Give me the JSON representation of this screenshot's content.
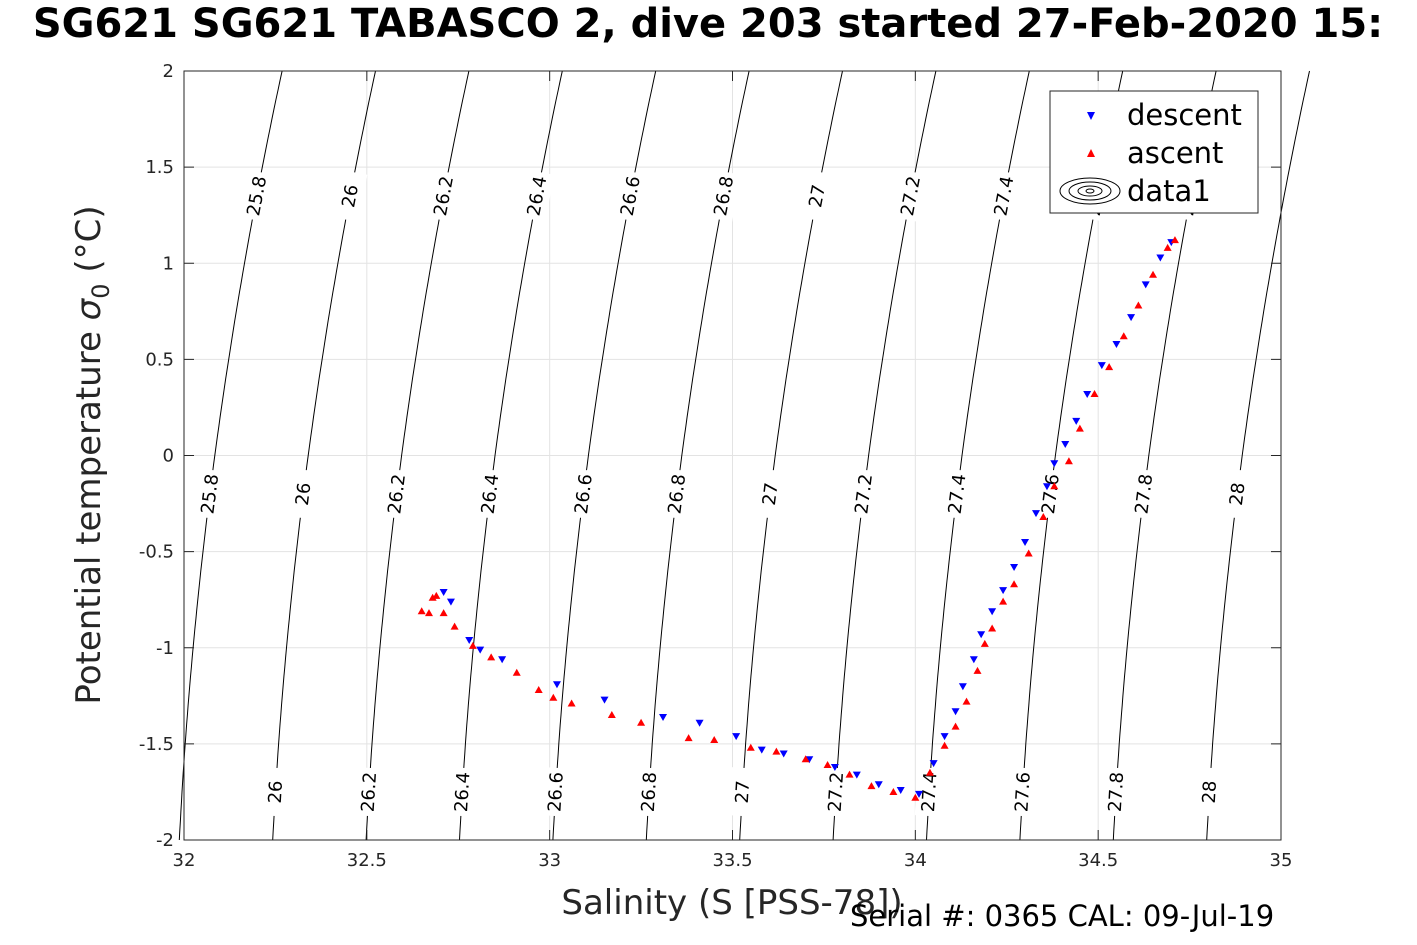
{
  "chart_data": {
    "type": "scatter",
    "title": "SG621 SG621 TABASCO 2, dive 203 started 27-Feb-2020 15:",
    "xlabel": "Salinity (S [PSS-78])",
    "ylabel_main": "Potential temperature ",
    "ylabel_symbol": "σ",
    "ylabel_sub": "0",
    "ylabel_unit": " (°C)",
    "xlim": [
      32,
      35
    ],
    "ylim": [
      -2,
      2
    ],
    "x_ticks": [
      32,
      32.5,
      33,
      33.5,
      34,
      34.5,
      35
    ],
    "x_tick_labels": [
      "32",
      "32.5",
      "33",
      "33.5",
      "34",
      "34.5",
      "35"
    ],
    "y_ticks": [
      -2,
      -1.5,
      -1,
      -0.5,
      0,
      0.5,
      1,
      1.5,
      2
    ],
    "y_tick_labels": [
      "-2",
      "-1.5",
      "-1",
      "-0.5",
      "0",
      "0.5",
      "1",
      "1.5",
      "2"
    ],
    "grid": true,
    "legend_position": "top-right",
    "legend": [
      "descent",
      "ascent",
      "data1"
    ],
    "contours": {
      "levels": [
        25.8,
        26,
        26.2,
        26.4,
        26.6,
        26.8,
        27,
        27.2,
        27.4,
        27.6,
        27.8,
        28
      ],
      "labels": [
        "25.8",
        "26",
        "26.2",
        "26.4",
        "26.6",
        "26.8",
        "27",
        "27.2",
        "27.4",
        "27.6",
        "27.8",
        "28"
      ],
      "color": "#000000"
    },
    "series": [
      {
        "name": "descent",
        "marker": "triangle-down",
        "color": "#0000ff",
        "points": [
          [
            32.71,
            -0.71
          ],
          [
            32.73,
            -0.76
          ],
          [
            32.78,
            -0.96
          ],
          [
            32.81,
            -1.01
          ],
          [
            32.87,
            -1.06
          ],
          [
            33.02,
            -1.19
          ],
          [
            33.15,
            -1.27
          ],
          [
            33.31,
            -1.36
          ],
          [
            33.41,
            -1.39
          ],
          [
            33.51,
            -1.46
          ],
          [
            33.58,
            -1.53
          ],
          [
            33.64,
            -1.55
          ],
          [
            33.71,
            -1.58
          ],
          [
            33.78,
            -1.62
          ],
          [
            33.84,
            -1.66
          ],
          [
            33.9,
            -1.71
          ],
          [
            33.96,
            -1.74
          ],
          [
            34.01,
            -1.76
          ],
          [
            34.05,
            -1.6
          ],
          [
            34.08,
            -1.46
          ],
          [
            34.11,
            -1.33
          ],
          [
            34.13,
            -1.2
          ],
          [
            34.16,
            -1.06
          ],
          [
            34.18,
            -0.93
          ],
          [
            34.21,
            -0.81
          ],
          [
            34.24,
            -0.7
          ],
          [
            34.27,
            -0.58
          ],
          [
            34.3,
            -0.45
          ],
          [
            34.33,
            -0.3
          ],
          [
            34.36,
            -0.16
          ],
          [
            34.38,
            -0.04
          ],
          [
            34.41,
            0.06
          ],
          [
            34.44,
            0.18
          ],
          [
            34.47,
            0.32
          ],
          [
            34.51,
            0.47
          ],
          [
            34.55,
            0.58
          ],
          [
            34.59,
            0.72
          ],
          [
            34.63,
            0.89
          ],
          [
            34.67,
            1.03
          ],
          [
            34.7,
            1.11
          ]
        ]
      },
      {
        "name": "ascent",
        "marker": "triangle-up",
        "color": "#ff0000",
        "points": [
          [
            32.65,
            -0.81
          ],
          [
            32.67,
            -0.82
          ],
          [
            32.68,
            -0.74
          ],
          [
            32.69,
            -0.73
          ],
          [
            32.71,
            -0.82
          ],
          [
            32.74,
            -0.89
          ],
          [
            32.79,
            -0.99
          ],
          [
            32.84,
            -1.05
          ],
          [
            32.91,
            -1.13
          ],
          [
            32.97,
            -1.22
          ],
          [
            33.01,
            -1.26
          ],
          [
            33.06,
            -1.29
          ],
          [
            33.17,
            -1.35
          ],
          [
            33.25,
            -1.39
          ],
          [
            33.38,
            -1.47
          ],
          [
            33.45,
            -1.48
          ],
          [
            33.55,
            -1.52
          ],
          [
            33.62,
            -1.54
          ],
          [
            33.7,
            -1.58
          ],
          [
            33.76,
            -1.61
          ],
          [
            33.82,
            -1.66
          ],
          [
            33.88,
            -1.72
          ],
          [
            33.94,
            -1.75
          ],
          [
            34.0,
            -1.78
          ],
          [
            34.04,
            -1.65
          ],
          [
            34.08,
            -1.51
          ],
          [
            34.11,
            -1.41
          ],
          [
            34.14,
            -1.28
          ],
          [
            34.17,
            -1.12
          ],
          [
            34.19,
            -0.98
          ],
          [
            34.21,
            -0.9
          ],
          [
            34.24,
            -0.76
          ],
          [
            34.27,
            -0.67
          ],
          [
            34.31,
            -0.51
          ],
          [
            34.35,
            -0.32
          ],
          [
            34.38,
            -0.16
          ],
          [
            34.42,
            -0.03
          ],
          [
            34.45,
            0.14
          ],
          [
            34.49,
            0.32
          ],
          [
            34.53,
            0.46
          ],
          [
            34.57,
            0.62
          ],
          [
            34.61,
            0.78
          ],
          [
            34.65,
            0.94
          ],
          [
            34.69,
            1.08
          ],
          [
            34.71,
            1.12
          ]
        ]
      }
    ]
  },
  "footer": {
    "serial_text": "Serial #: 0365  CAL: 09-Jul-19"
  }
}
